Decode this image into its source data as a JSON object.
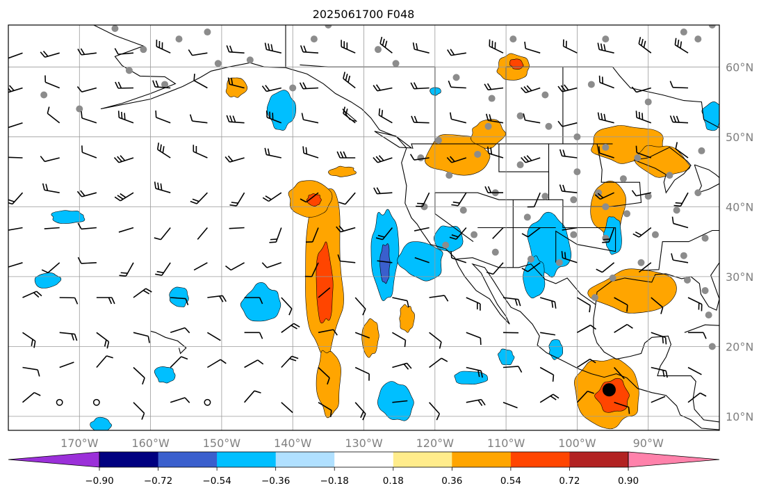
{
  "title": "2025061700 F048",
  "map": {
    "lon_range": [
      -180,
      -80
    ],
    "lat_range": [
      8,
      66
    ],
    "lat_ticks": [
      {
        "lat": 60,
        "label": "60°N"
      },
      {
        "lat": 50,
        "label": "50°N"
      },
      {
        "lat": 40,
        "label": "40°N"
      },
      {
        "lat": 30,
        "label": "30°N"
      },
      {
        "lat": 20,
        "label": "20°N"
      },
      {
        "lat": 10,
        "label": "10°N"
      }
    ],
    "lon_ticks": [
      {
        "lon": -170,
        "label": "170°W"
      },
      {
        "lon": -160,
        "label": "160°W"
      },
      {
        "lon": -150,
        "label": "150°W"
      },
      {
        "lon": -140,
        "label": "140°W"
      },
      {
        "lon": -130,
        "label": "130°W"
      },
      {
        "lon": -120,
        "label": "120°W"
      },
      {
        "lon": -110,
        "label": "110°W"
      },
      {
        "lon": -100,
        "label": "100°W"
      },
      {
        "lon": -90,
        "label": "90°W"
      }
    ],
    "gridline_color": "#9a9a9a",
    "coastline_color": "#000000",
    "station_marker_color": "#8c8c8c"
  },
  "colorbar": {
    "orientation": "horizontal",
    "extend": "both",
    "bins": [
      {
        "color": "#9b30d9"
      },
      {
        "color": "#000080"
      },
      {
        "color": "#3a5fcd"
      },
      {
        "color": "#00bfff"
      },
      {
        "color": "#b0e0ff"
      },
      {
        "color": "#ffffff"
      },
      {
        "color": "#ffec8b"
      },
      {
        "color": "#ffa500"
      },
      {
        "color": "#ff4500"
      },
      {
        "color": "#b22222"
      },
      {
        "color": "#ff82ab"
      }
    ],
    "tick_labels": [
      "−0.90",
      "−0.72",
      "−0.54",
      "−0.36",
      "−0.18",
      "0.18",
      "0.36",
      "0.54",
      "0.72",
      "0.90"
    ]
  },
  "features": {
    "positive_regions": [
      {
        "lon": -135.5,
        "lat": 31,
        "rlon": 2.8,
        "rlat": 13,
        "level": "0.36"
      },
      {
        "lon": -135.5,
        "lat": 29,
        "rlon": 1.2,
        "rlat": 6,
        "level": "0.54"
      },
      {
        "lon": -135,
        "lat": 15,
        "rlon": 1.8,
        "rlat": 5,
        "level": "0.36"
      },
      {
        "lon": -137.5,
        "lat": 41,
        "rlon": 3.2,
        "rlat": 2.8,
        "level": "0.36"
      },
      {
        "lon": -137,
        "lat": 41,
        "rlon": 1,
        "rlat": 1,
        "level": "0.54"
      },
      {
        "lon": -129,
        "lat": 21.5,
        "rlon": 1.2,
        "rlat": 3,
        "level": "0.36"
      },
      {
        "lon": -124,
        "lat": 24,
        "rlon": 1.1,
        "rlat": 2,
        "level": "0.36"
      },
      {
        "lon": -133,
        "lat": 45,
        "rlon": 2,
        "rlat": 0.8,
        "level": "0.36"
      },
      {
        "lon": -117,
        "lat": 47.5,
        "rlon": 4.5,
        "rlat": 3,
        "level": "0.36"
      },
      {
        "lon": -112.5,
        "lat": 50.5,
        "rlon": 2.5,
        "rlat": 2,
        "level": "0.36"
      },
      {
        "lon": -109,
        "lat": 60,
        "rlon": 2.5,
        "rlat": 2,
        "level": "0.36"
      },
      {
        "lon": -108.5,
        "lat": 60.5,
        "rlon": 1,
        "rlat": 0.8,
        "level": "0.54"
      },
      {
        "lon": -93,
        "lat": 49,
        "rlon": 5,
        "rlat": 3,
        "level": "0.36"
      },
      {
        "lon": -88,
        "lat": 46.5,
        "rlon": 4,
        "rlat": 2.5,
        "level": "0.36"
      },
      {
        "lon": -95.5,
        "lat": 40,
        "rlon": 2.5,
        "rlat": 4,
        "level": "0.36"
      },
      {
        "lon": -92,
        "lat": 28,
        "rlon": 6,
        "rlat": 3,
        "level": "0.36"
      },
      {
        "lon": -95.5,
        "lat": 13.5,
        "rlon": 5,
        "rlat": 5,
        "level": "0.36"
      },
      {
        "lon": -95,
        "lat": 13,
        "rlon": 2.5,
        "rlat": 2.5,
        "level": "0.54"
      },
      {
        "lon": -148,
        "lat": 57,
        "rlon": 1.5,
        "rlat": 1.5,
        "level": "0.36"
      }
    ],
    "negative_regions": [
      {
        "lon": -127,
        "lat": 33,
        "rlon": 2,
        "rlat": 7,
        "level": "-0.36"
      },
      {
        "lon": -127,
        "lat": 32,
        "rlon": 0.7,
        "rlat": 3,
        "level": "-0.54"
      },
      {
        "lon": -122,
        "lat": 32.5,
        "rlon": 3.5,
        "rlat": 3,
        "level": "-0.36"
      },
      {
        "lon": -118,
        "lat": 35.5,
        "rlon": 2,
        "rlat": 2,
        "level": "-0.36"
      },
      {
        "lon": -144.5,
        "lat": 26,
        "rlon": 3,
        "rlat": 3,
        "level": "-0.36"
      },
      {
        "lon": -104,
        "lat": 34.5,
        "rlon": 3.2,
        "rlat": 4.5,
        "level": "-0.36"
      },
      {
        "lon": -106,
        "lat": 30,
        "rlon": 1.5,
        "rlat": 3,
        "level": "-0.36"
      },
      {
        "lon": -125.5,
        "lat": 12,
        "rlon": 2.5,
        "rlat": 3,
        "level": "-0.36"
      },
      {
        "lon": -115,
        "lat": 15.5,
        "rlon": 2.5,
        "rlat": 1,
        "level": "-0.36"
      },
      {
        "lon": -174.5,
        "lat": 29.5,
        "rlon": 2,
        "rlat": 1.2,
        "level": "-0.36"
      },
      {
        "lon": -156,
        "lat": 27,
        "rlon": 1.5,
        "rlat": 1.5,
        "level": "-0.36"
      },
      {
        "lon": -158,
        "lat": 16,
        "rlon": 1.5,
        "rlat": 1.2,
        "level": "-0.36"
      },
      {
        "lon": -167,
        "lat": 8.8,
        "rlon": 1.5,
        "rlat": 1,
        "level": "-0.36"
      },
      {
        "lon": -141.5,
        "lat": 54,
        "rlon": 2,
        "rlat": 3,
        "level": "-0.36"
      },
      {
        "lon": -120,
        "lat": 56.5,
        "rlon": 0.8,
        "rlat": 0.6,
        "level": "-0.36"
      },
      {
        "lon": -95,
        "lat": 36,
        "rlon": 1.3,
        "rlat": 3,
        "level": "-0.36"
      },
      {
        "lon": -81,
        "lat": 53,
        "rlon": 1.5,
        "rlat": 2,
        "level": "-0.36"
      },
      {
        "lon": -171.5,
        "lat": 38.5,
        "rlon": 2.5,
        "rlat": 1,
        "level": "-0.36"
      },
      {
        "lon": -110,
        "lat": 18.5,
        "rlon": 1.2,
        "rlat": 1.2,
        "level": "-0.36"
      },
      {
        "lon": -103,
        "lat": 19.5,
        "rlon": 1,
        "rlat": 1.5,
        "level": "-0.36"
      }
    ],
    "hurricane_marker": {
      "lon": -95.5,
      "lat": 13.8
    }
  }
}
